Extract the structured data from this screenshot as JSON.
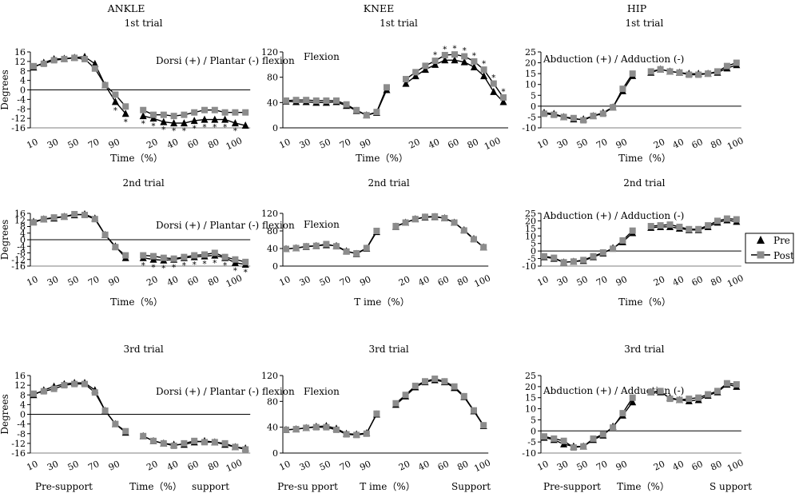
{
  "colors": {
    "pre": "#000000",
    "post": "#8c8c8c",
    "line": "#000000"
  },
  "headers": [
    "ANKLE",
    "KNEE",
    "HIP"
  ],
  "legend": {
    "pre": "Pre",
    "post": "Post",
    "placement": "right of 2nd-trial hip panel"
  },
  "xlabels": {
    "time": "Time（%）",
    "knee_time": "T ime（%）",
    "pre_support": "Pre-support",
    "pre_support_knee": "Pre-su  pport",
    "support": "support",
    "support_knee": "Support",
    "support_hip": "S upport"
  },
  "chart_data": [
    {
      "id": "ankle-1",
      "type": "line",
      "title": "1st trial",
      "ylabel": "Degrees",
      "annotation": "Dorsi (+) / Plantar (-) flexion",
      "xlabel": "Time（%）",
      "ylim": [
        -16,
        16
      ],
      "yticks": [
        16,
        12,
        8,
        4,
        0,
        -4,
        -8,
        -12,
        -16
      ],
      "xticks_pre": [
        10,
        30,
        50,
        70,
        90
      ],
      "xticks_sup": [
        20,
        40,
        60,
        80,
        100
      ],
      "series": [
        {
          "name": "Pre",
          "pre": [
            9.5,
            11.5,
            13,
            13.2,
            13.6,
            14,
            11,
            2,
            -5,
            -10
          ],
          "sup": [
            -11,
            -12,
            -13.5,
            -14,
            -14,
            -13,
            -12.5,
            -12.5,
            -12.5,
            -14,
            -15
          ]
        },
        {
          "name": "Post",
          "pre": [
            10,
            11,
            12.5,
            13,
            13.5,
            13,
            9,
            2,
            -2,
            -7
          ],
          "sup": [
            -8.5,
            -10.5,
            -10.5,
            -11,
            -10.5,
            -9.5,
            -8.5,
            -8.5,
            -9.5,
            -9.5,
            -9.5
          ]
        }
      ],
      "significance_pre": [
        8,
        9
      ],
      "significance_sup": [
        0,
        1,
        2,
        3,
        4,
        5,
        6,
        7,
        8,
        9
      ]
    },
    {
      "id": "knee-1",
      "type": "line",
      "title": "1st trial",
      "annotation": "Flexion",
      "xlabel": "Time（%）",
      "ylim": [
        0,
        120
      ],
      "yticks": [
        120,
        80,
        40,
        0
      ],
      "xticks_pre": [
        10,
        30,
        50,
        70,
        90
      ],
      "xticks_sup": [
        20,
        40,
        60,
        80,
        100
      ],
      "series": [
        {
          "name": "Pre",
          "pre": [
            42,
            41,
            41,
            40,
            40,
            41,
            35,
            27,
            20,
            24,
            60
          ],
          "sup": [
            70,
            82,
            92,
            100,
            107,
            107,
            104,
            96,
            82,
            57,
            41
          ]
        },
        {
          "name": "Post",
          "pre": [
            43,
            44,
            44,
            43,
            43,
            43,
            37,
            28,
            20,
            25,
            64
          ],
          "sup": [
            77,
            88,
            98,
            106,
            115,
            116,
            113,
            105,
            92,
            70,
            48
          ]
        }
      ],
      "significance_sup": [
        3,
        4,
        5,
        6,
        7,
        8,
        9,
        10
      ]
    },
    {
      "id": "hip-1",
      "type": "line",
      "title": "1st trial",
      "annotation": "Abduction (+) / Adduction (-)",
      "xlabel": "Time（%）",
      "ylim": [
        -10,
        25
      ],
      "yticks": [
        25,
        20,
        15,
        10,
        5,
        0,
        -5,
        -10
      ],
      "xticks_pre": [
        10,
        30,
        50,
        70,
        90
      ],
      "xticks_sup": [
        20,
        40,
        60,
        80,
        100
      ],
      "series": [
        {
          "name": "Pre",
          "pre": [
            -3,
            -3.5,
            -5,
            -6,
            -6,
            -4.5,
            -3,
            -0.5,
            7,
            14
          ],
          "sup": [
            15.5,
            17,
            16,
            15.5,
            15,
            15,
            15,
            15.5,
            17.5,
            19
          ]
        },
        {
          "name": "Post",
          "pre": [
            -3.5,
            -4,
            -5,
            -5.5,
            -6.5,
            -4.5,
            -3.5,
            -0.5,
            8,
            15
          ],
          "sup": [
            16,
            17,
            16,
            15.5,
            14.5,
            14.5,
            15,
            16,
            18.5,
            20
          ]
        }
      ]
    },
    {
      "id": "ankle-2",
      "type": "line",
      "title": "2nd trial",
      "ylabel": "Degrees",
      "annotation": "Dorsi (+) / Plantar (-) flexion",
      "xlabel": "Time（%）",
      "ylim": [
        -16,
        16
      ],
      "yticks": [
        16,
        12,
        8,
        4,
        0,
        -4,
        -8,
        -12,
        -16
      ],
      "xticks_pre": [
        10,
        30,
        50,
        70,
        90
      ],
      "xticks_sup": [
        20,
        40,
        60,
        80,
        100
      ],
      "series": [
        {
          "name": "Pre",
          "pre": [
            11,
            12.5,
            13,
            14,
            15,
            15.5,
            13,
            3,
            -4,
            -11
          ],
          "sup": [
            -11,
            -12,
            -12.5,
            -12,
            -11,
            -10.5,
            -10,
            -9.5,
            -11,
            -14,
            -15
          ]
        },
        {
          "name": "Post",
          "pre": [
            10.5,
            12.5,
            13.5,
            14,
            15.5,
            15,
            12.5,
            3,
            -4.5,
            -9.5
          ],
          "sup": [
            -9.5,
            -10,
            -11,
            -11.5,
            -10.5,
            -9.5,
            -9,
            -8,
            -10.5,
            -12,
            -13.5
          ]
        }
      ],
      "significance_sup": [
        0,
        1,
        2,
        3,
        4,
        5,
        6,
        7,
        8,
        9,
        10
      ]
    },
    {
      "id": "knee-2",
      "type": "line",
      "title": "2nd trial",
      "annotation": "Flexion",
      "xlabel": "T ime（%）",
      "ylim": [
        0,
        120
      ],
      "yticks": [
        120,
        80,
        40,
        0
      ],
      "xticks_pre": [
        10,
        30,
        50,
        70,
        90
      ],
      "xticks_sup": [
        20,
        40,
        60,
        80,
        100
      ],
      "series": [
        {
          "name": "Pre",
          "pre": [
            39,
            41,
            44,
            46,
            48,
            46,
            34,
            28,
            40,
            78
          ],
          "sup": [
            90,
            99,
            107,
            111,
            112,
            109,
            99,
            82,
            62,
            43
          ]
        },
        {
          "name": "Post",
          "pre": [
            39,
            41,
            45,
            46,
            50,
            45,
            33,
            29,
            41,
            80
          ],
          "sup": [
            91,
            99,
            107,
            112,
            113,
            109,
            99,
            81,
            61,
            43
          ]
        }
      ]
    },
    {
      "id": "hip-2",
      "type": "line",
      "title": "2nd trial",
      "annotation": "Abduction (+) / Adduction (-)",
      "xlabel": "Time（%）",
      "ylim": [
        -10,
        25
      ],
      "yticks": [
        25,
        20,
        15,
        10,
        5,
        0,
        -5,
        -10
      ],
      "xticks_pre": [
        10,
        30,
        50,
        70,
        90
      ],
      "xticks_sup": [
        20,
        40,
        60,
        80,
        100
      ],
      "series": [
        {
          "name": "Pre",
          "pre": [
            -4,
            -5,
            -7.5,
            -7,
            -6.5,
            -4,
            -1.5,
            2,
            6,
            12
          ],
          "sup": [
            15.5,
            16,
            16,
            15,
            14,
            14,
            16,
            19,
            20.5,
            19.5
          ]
        },
        {
          "name": "Post",
          "pre": [
            -3.5,
            -4.5,
            -7.5,
            -7,
            -6,
            -3.5,
            -1,
            1.5,
            7,
            13.5
          ],
          "sup": [
            16.5,
            17,
            17.5,
            16,
            14.5,
            14.5,
            17,
            20,
            21.5,
            21
          ]
        }
      ]
    },
    {
      "id": "ankle-3",
      "type": "line",
      "title": "3rd trial",
      "ylabel": "Degrees",
      "annotation": "Dorsi (+) / Plantar (-) flexion",
      "xlabel": "Time（%）",
      "ylim": [
        -16,
        16
      ],
      "yticks": [
        16,
        12,
        8,
        4,
        0,
        -4,
        -8,
        -12,
        -16
      ],
      "xticks_pre": [
        10,
        30,
        50,
        70,
        90
      ],
      "xticks_sup": [
        20,
        40,
        60,
        80,
        100
      ],
      "series": [
        {
          "name": "Pre",
          "pre": [
            8,
            10,
            11.5,
            12.5,
            13,
            13,
            10,
            1.5,
            -4,
            -7.5
          ],
          "sup": [
            -9,
            -11,
            -12,
            -12.5,
            -12.5,
            -11.5,
            -11,
            -11.5,
            -12.5,
            -13.5,
            -14
          ]
        },
        {
          "name": "Post",
          "pre": [
            8.5,
            9.5,
            10.5,
            12,
            12.5,
            12.5,
            9,
            1.5,
            -4,
            -7
          ],
          "sup": [
            -9,
            -11,
            -12,
            -13,
            -12,
            -11,
            -11.5,
            -11.5,
            -12,
            -13.5,
            -14.5
          ]
        }
      ]
    },
    {
      "id": "knee-3",
      "type": "line",
      "title": "3rd trial",
      "annotation": "Flexion",
      "xlabel": "T ime（%）",
      "ylim": [
        0,
        120
      ],
      "yticks": [
        120,
        80,
        40,
        0
      ],
      "xticks_pre": [
        10,
        30,
        50,
        70,
        90
      ],
      "xticks_sup": [
        20,
        40,
        60,
        80,
        100
      ],
      "series": [
        {
          "name": "Pre",
          "pre": [
            36,
            37,
            39,
            41,
            42,
            38,
            30,
            29,
            31,
            60
          ],
          "sup": [
            75,
            88,
            102,
            110,
            113,
            110,
            101,
            87,
            65,
            42
          ]
        },
        {
          "name": "Post",
          "pre": [
            36,
            37,
            39,
            40,
            40,
            36,
            29,
            28,
            30,
            61
          ],
          "sup": [
            77,
            90,
            104,
            111,
            115,
            111,
            103,
            88,
            66,
            43
          ]
        }
      ]
    },
    {
      "id": "hip-3",
      "type": "line",
      "title": "3rd trial",
      "annotation": "Abduction (+) / Adduction (-)",
      "xlabel": "Time（%）",
      "ylim": [
        -10,
        25
      ],
      "yticks": [
        25,
        20,
        15,
        10,
        5,
        0,
        -5,
        -10
      ],
      "xticks_pre": [
        10,
        30,
        50,
        70,
        90
      ],
      "xticks_sup": [
        20,
        40,
        60,
        80,
        100
      ],
      "series": [
        {
          "name": "Pre",
          "pre": [
            -3,
            -4,
            -6,
            -7,
            -7,
            -4,
            -2,
            2,
            7,
            13
          ],
          "sup": [
            17.5,
            17.5,
            15,
            14,
            13.5,
            14,
            16,
            17.5,
            21,
            20
          ]
        },
        {
          "name": "Post",
          "pre": [
            -2.5,
            -3.5,
            -4.5,
            -7.5,
            -7,
            -3.5,
            -1.5,
            1.5,
            8,
            15
          ],
          "sup": [
            17.5,
            18,
            14.5,
            14,
            14.5,
            15,
            16.5,
            18,
            21.5,
            21
          ]
        }
      ]
    }
  ]
}
